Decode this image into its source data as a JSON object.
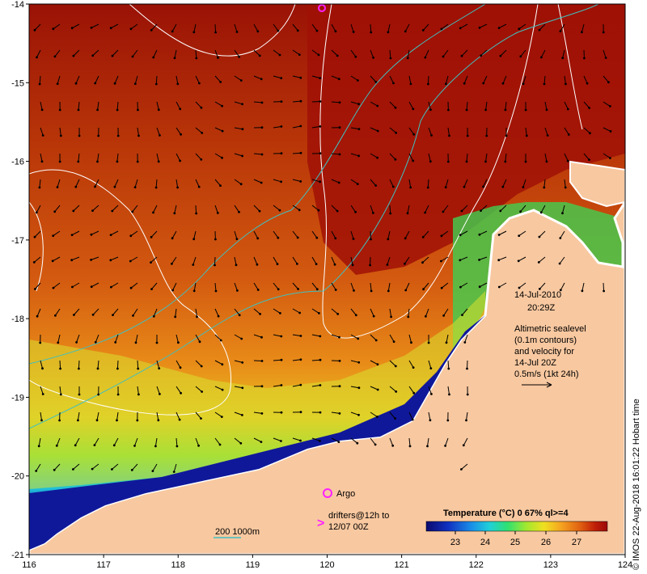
{
  "map": {
    "x_ticks": [
      "116",
      "117",
      "118",
      "119",
      "120",
      "121",
      "122",
      "123",
      "124"
    ],
    "y_ticks": [
      "-14",
      "-15",
      "-16",
      "-17",
      "-18",
      "-19",
      "-20",
      "-21"
    ],
    "lon_range": [
      116,
      124
    ],
    "lat_range": [
      -21,
      -14
    ]
  },
  "annotations": {
    "date": "14-Jul-2010",
    "time": "20:29Z",
    "altimetry": [
      "Altimetric sealevel",
      "(0.1m contours)",
      "and velocity for",
      "14-Jul 20Z",
      "0.5m/s (1kt 24h)"
    ],
    "argo_label": "Argo",
    "drifters": [
      "drifters@12h to",
      "12/07 00Z"
    ],
    "bathy_label": "200  1000m"
  },
  "colorbar": {
    "title": "Temperature (°C) 0 67% ql>=4",
    "ticks": [
      "23",
      "24",
      "25",
      "26",
      "27"
    ],
    "colors": [
      "#0a0a6e",
      "#1030c0",
      "#1a8fe8",
      "#20d0d8",
      "#30e070",
      "#a0e830",
      "#f0e020",
      "#f5a020",
      "#e06010",
      "#c02008",
      "#9a0808"
    ]
  },
  "credit": "© IMOS 22-Aug-2018 16:01:22 Hobart time",
  "colors": {
    "land": "#f8c8a0",
    "warm_water": "#b83008",
    "cool_water": "#1010a0",
    "contour_sealevel": "#ffffff",
    "contour_bathy": "#40c0c0",
    "argo": "#ff20ff"
  }
}
